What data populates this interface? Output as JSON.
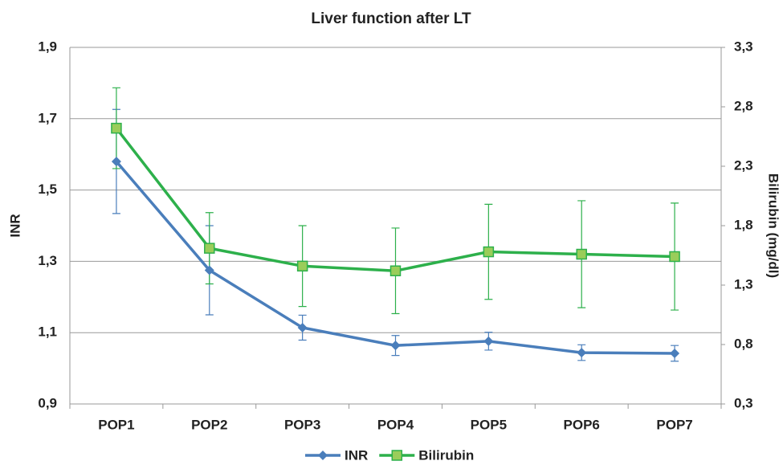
{
  "chart_data": {
    "type": "line",
    "title": "Liver function after LT",
    "categories": [
      "POP1",
      "POP2",
      "POP3",
      "POP4",
      "POP5",
      "POP6",
      "POP7"
    ],
    "ylabel": "INR",
    "y2label": "Bilirubin (mg/dl)",
    "ylim": [
      0.9,
      1.9
    ],
    "yticks": [
      {
        "value": 0.9,
        "label": "0,9"
      },
      {
        "value": 1.1,
        "label": "1,1"
      },
      {
        "value": 1.3,
        "label": "1,3"
      },
      {
        "value": 1.5,
        "label": "1,5"
      },
      {
        "value": 1.7,
        "label": "1,7"
      },
      {
        "value": 1.9,
        "label": "1,9"
      }
    ],
    "y2lim": [
      0.3,
      3.3
    ],
    "y2ticks": [
      {
        "value": 0.3,
        "label": "0,3"
      },
      {
        "value": 0.8,
        "label": "0,8"
      },
      {
        "value": 1.3,
        "label": "1,3"
      },
      {
        "value": 1.8,
        "label": "1,8"
      },
      {
        "value": 2.3,
        "label": "2,3"
      },
      {
        "value": 2.8,
        "label": "2,8"
      },
      {
        "value": 3.3,
        "label": "3,3"
      }
    ],
    "grid": true,
    "series": [
      {
        "name": "INR",
        "color": "#4a7ebb",
        "marker": "diamond",
        "values": [
          1.58,
          1.275,
          1.114,
          1.064,
          1.076,
          1.044,
          1.042
        ],
        "errors": [
          0.146,
          0.125,
          0.035,
          0.028,
          0.025,
          0.022,
          0.022
        ]
      },
      {
        "name": "Bilirubin",
        "color": "#2db04b",
        "marker": "square",
        "axis": "y2",
        "values": [
          2.62,
          1.61,
          1.46,
          1.42,
          1.58,
          1.56,
          1.54
        ],
        "errors": [
          0.34,
          0.3,
          0.34,
          0.36,
          0.4,
          0.45,
          0.45
        ]
      }
    ]
  }
}
